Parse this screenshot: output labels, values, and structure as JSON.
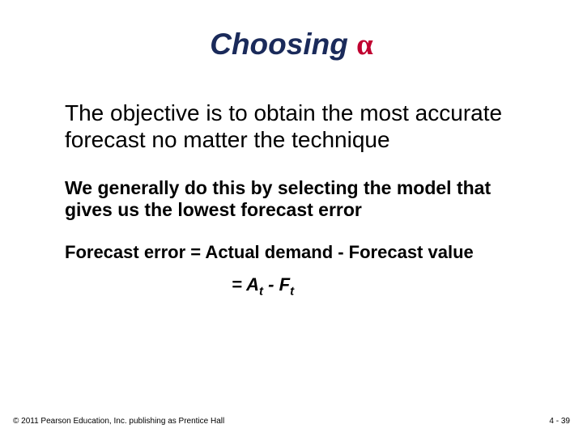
{
  "title": {
    "prefix": "Choosing ",
    "alpha": "α"
  },
  "objective": "The objective is to obtain the most accurate forecast no matter the technique",
  "paragraph": "We generally do this by selecting the model that gives us the lowest forecast error",
  "formula": {
    "line1": "Forecast error = Actual demand - Forecast value",
    "eq": "= ",
    "a": "A",
    "sub": "t",
    "minus": " - ",
    "f": "F"
  },
  "footer": {
    "copyright": "© 2011 Pearson Education, Inc. publishing as Prentice Hall",
    "pagenum": "4 - 39"
  },
  "colors": {
    "title": "#1a2a5a",
    "alpha": "#c00030",
    "text": "#000000",
    "background": "#ffffff"
  }
}
